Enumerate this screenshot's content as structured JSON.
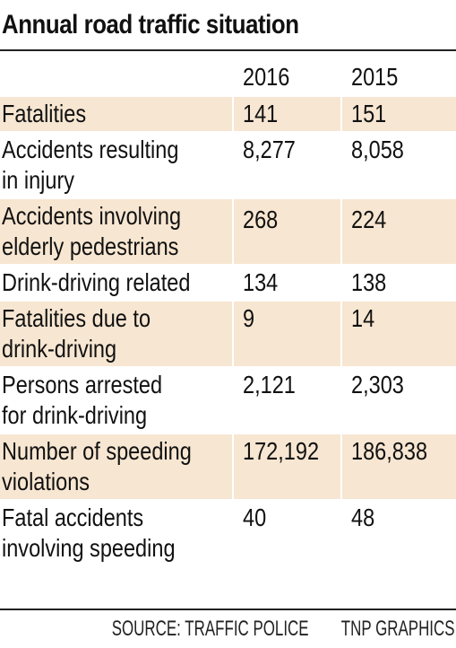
{
  "chart_data": {
    "type": "table",
    "title": "Annual road traffic situation",
    "columns": [
      "",
      "2016",
      "2015"
    ],
    "rows": [
      {
        "label": [
          "Fatalities"
        ],
        "v2016": "141",
        "v2015": "151"
      },
      {
        "label": [
          "Accidents resulting",
          "in injury"
        ],
        "v2016": "8,277",
        "v2015": "8,058"
      },
      {
        "label": [
          "Accidents involving",
          "elderly pedestrians"
        ],
        "v2016": "268",
        "v2015": "224"
      },
      {
        "label": [
          "Drink-driving related"
        ],
        "v2016": "134",
        "v2015": "138"
      },
      {
        "label": [
          "Fatalities due to",
          "drink-driving"
        ],
        "v2016": "9",
        "v2015": "14"
      },
      {
        "label": [
          "Persons arrested",
          "for drink-driving"
        ],
        "v2016": "2,121",
        "v2015": "2,303"
      },
      {
        "label": [
          "Number of speeding",
          "violations"
        ],
        "v2016": "172,192",
        "v2015": "186,838"
      },
      {
        "label": [
          "Fatal accidents",
          "involving speeding"
        ],
        "v2016": "40",
        "v2015": "48"
      }
    ]
  },
  "footer": {
    "source": "SOURCE: TRAFFIC POLICE",
    "credit": "TNP GRAPHICS"
  },
  "colors": {
    "band": "#f7e6d1",
    "text": "#111111",
    "rule": "#222222"
  }
}
